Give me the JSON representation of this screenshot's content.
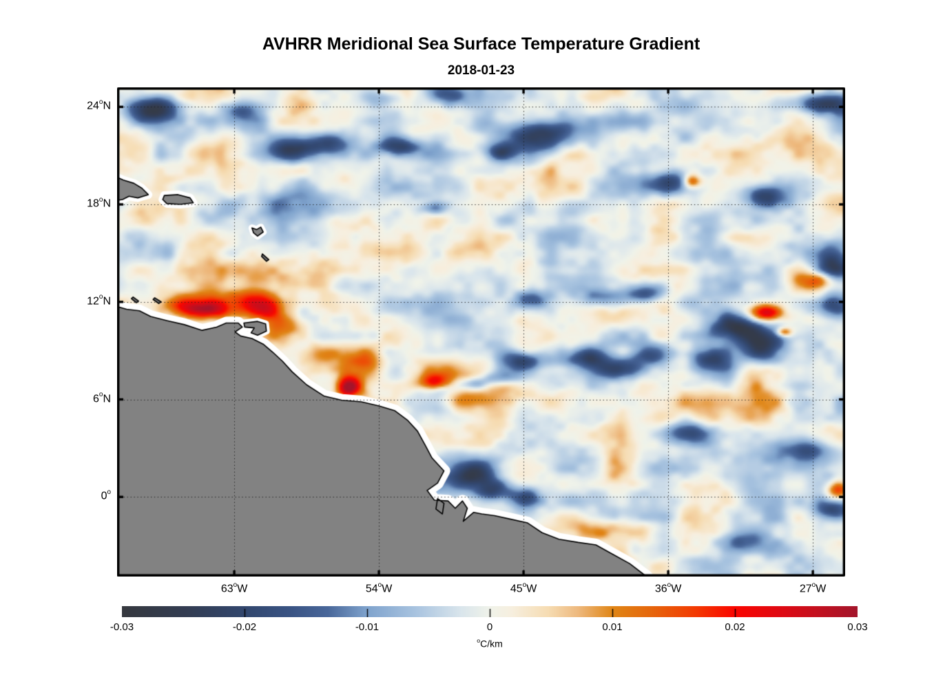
{
  "chart_data": {
    "type": "heatmap",
    "title": "AVHRR Meridional Sea Surface Temperature Gradient",
    "date": "2018-01-23",
    "axes": {
      "lon_range_deg_east": [
        -70.29,
        -24.99
      ],
      "lat_range_deg_north": [
        -4.9,
        25.2
      ],
      "grid_style": "dotted",
      "x_ticks": [
        {
          "label": "63°W",
          "lon": -63
        },
        {
          "label": "54°W",
          "lon": -54
        },
        {
          "label": "45°W",
          "lon": -45
        },
        {
          "label": "36°W",
          "lon": -36
        },
        {
          "label": "27°W",
          "lon": -27
        }
      ],
      "y_ticks": [
        {
          "label": "24°N",
          "lat": 24
        },
        {
          "label": "18°N",
          "lat": 18
        },
        {
          "label": "12°N",
          "lat": 12
        },
        {
          "label": "6°N",
          "lat": 6
        },
        {
          "label": "0°",
          "lat": 0
        }
      ]
    },
    "colorbar": {
      "min": -0.03,
      "max": 0.03,
      "unit": "°C/km",
      "tick_labels": [
        "-0.03",
        "-0.02",
        "-0.01",
        "0",
        "0.01",
        "0.02",
        "0.03"
      ],
      "tick_values": [
        -0.03,
        -0.02,
        -0.01,
        0,
        0.01,
        0.02,
        0.03
      ],
      "inner_tick_values": [
        -0.02,
        -0.01,
        0,
        0.01,
        0.02
      ],
      "colormap_stops": [
        [
          0.0,
          "#36393f"
        ],
        [
          0.09,
          "#333d53"
        ],
        [
          0.167,
          "#32476e"
        ],
        [
          0.23,
          "#3a5484"
        ],
        [
          0.28,
          "#49679a"
        ],
        [
          0.333,
          "#7fa3cd"
        ],
        [
          0.4,
          "#a9c4e0"
        ],
        [
          0.46,
          "#d9e5ec"
        ],
        [
          0.5,
          "#f0f3ea"
        ],
        [
          0.53,
          "#f7efdf"
        ],
        [
          0.58,
          "#f6dcb2"
        ],
        [
          0.62,
          "#eeb97e"
        ],
        [
          0.667,
          "#e08616"
        ],
        [
          0.72,
          "#e6660c"
        ],
        [
          0.78,
          "#f33a02"
        ],
        [
          0.833,
          "#fa0600"
        ],
        [
          0.9,
          "#dd0a14"
        ],
        [
          0.95,
          "#c11120"
        ],
        [
          1.0,
          "#a3152b"
        ]
      ]
    },
    "field": {
      "units": "°C/km",
      "noise": {
        "seed": 1337,
        "octaves": [
          {
            "cell_x": 66,
            "cell_y": 46,
            "amp": 0.0058
          },
          {
            "cell_x": 33,
            "cell_y": 24,
            "amp": 0.004
          },
          {
            "cell_x": 15,
            "cell_y": 12,
            "amp": 0.0016
          }
        ]
      },
      "features": [
        {
          "lon": -62.3,
          "lat": 12.05,
          "sx": 1.7,
          "sy": 0.55,
          "amp": 0.02
        },
        {
          "lon": -64.9,
          "lat": 11.55,
          "sx": 1.1,
          "sy": 0.42,
          "amp": 0.024
        },
        {
          "lon": -61.1,
          "lat": 11.5,
          "sx": 0.8,
          "sy": 0.45,
          "amp": 0.016
        },
        {
          "lon": -66.8,
          "lat": 11.9,
          "sx": 1.2,
          "sy": 0.5,
          "amp": 0.012
        },
        {
          "lon": -59.8,
          "lat": 10.5,
          "sx": 1.0,
          "sy": 0.6,
          "amp": 0.012
        },
        {
          "lon": -55.9,
          "lat": 6.8,
          "sx": 0.55,
          "sy": 0.45,
          "amp": 0.034
        },
        {
          "lon": -54.7,
          "lat": 8.2,
          "sx": 0.8,
          "sy": 0.7,
          "amp": 0.013
        },
        {
          "lon": -56.5,
          "lat": 8.8,
          "sx": 1.2,
          "sy": 0.5,
          "amp": 0.008
        },
        {
          "lon": -50.2,
          "lat": 7.3,
          "sx": 1.3,
          "sy": 0.8,
          "amp": 0.009
        },
        {
          "lon": -50.6,
          "lat": 7.0,
          "sx": 0.5,
          "sy": 0.35,
          "amp": 0.012
        },
        {
          "lon": -29.9,
          "lat": 11.4,
          "sx": 0.7,
          "sy": 0.35,
          "amp": 0.026
        },
        {
          "lon": -28.8,
          "lat": 10.2,
          "sx": 0.35,
          "sy": 0.2,
          "amp": 0.018
        },
        {
          "lon": -34.5,
          "lat": 19.5,
          "sx": 0.4,
          "sy": 0.3,
          "amp": 0.022
        },
        {
          "lon": -25.4,
          "lat": 0.5,
          "sx": 0.5,
          "sy": 0.4,
          "amp": 0.022
        },
        {
          "lon": -26.5,
          "lat": 13.4,
          "sx": 0.9,
          "sy": 0.4,
          "amp": 0.016
        },
        {
          "lon": -39.5,
          "lat": -1.9,
          "sx": 2.0,
          "sy": 0.55,
          "amp": 0.009
        },
        {
          "lon": -58.8,
          "lat": 13.8,
          "sx": 1.8,
          "sy": 0.7,
          "amp": 0.008
        },
        {
          "lon": -46.0,
          "lat": 6.3,
          "sx": 2.5,
          "sy": 0.7,
          "amp": 0.007
        },
        {
          "lon": -30.0,
          "lat": 5.8,
          "sx": 2.0,
          "sy": 0.8,
          "amp": 0.007
        },
        {
          "lon": -38.9,
          "lat": 9.0,
          "sx": 1.1,
          "sy": 0.35,
          "amp": 0.01
        },
        {
          "lon": -59.0,
          "lat": 20.3,
          "sx": 1.4,
          "sy": 0.5,
          "amp": 0.007
        },
        {
          "lon": -68.3,
          "lat": 23.9,
          "sx": 1.2,
          "sy": 0.6,
          "amp": -0.024
        },
        {
          "lon": -62.6,
          "lat": 23.9,
          "sx": 0.9,
          "sy": 0.4,
          "amp": -0.013
        },
        {
          "lon": -59.8,
          "lat": 21.3,
          "sx": 1.1,
          "sy": 0.5,
          "amp": -0.022
        },
        {
          "lon": -57.2,
          "lat": 21.8,
          "sx": 0.9,
          "sy": 0.5,
          "amp": -0.017
        },
        {
          "lon": -52.8,
          "lat": 21.6,
          "sx": 0.9,
          "sy": 0.4,
          "amp": -0.02
        },
        {
          "lon": -43.9,
          "lat": 22.4,
          "sx": 1.9,
          "sy": 0.75,
          "amp": -0.026
        },
        {
          "lon": -46.5,
          "lat": 21.3,
          "sx": 0.7,
          "sy": 0.4,
          "amp": -0.015
        },
        {
          "lon": -35.8,
          "lat": 19.4,
          "sx": 1.2,
          "sy": 0.6,
          "amp": -0.024
        },
        {
          "lon": -30.0,
          "lat": 18.6,
          "sx": 1.0,
          "sy": 0.5,
          "amp": -0.021
        },
        {
          "lon": -26.4,
          "lat": 24.3,
          "sx": 1.3,
          "sy": 0.5,
          "amp": -0.021
        },
        {
          "lon": -58.5,
          "lat": 18.0,
          "sx": 3.2,
          "sy": 0.8,
          "amp": -0.009
        },
        {
          "lon": -50.6,
          "lat": 17.8,
          "sx": 0.6,
          "sy": 0.3,
          "amp": -0.013
        },
        {
          "lon": -25.7,
          "lat": 14.2,
          "sx": 0.8,
          "sy": 0.9,
          "amp": -0.024
        },
        {
          "lon": -25.8,
          "lat": 11.8,
          "sx": 0.8,
          "sy": 0.5,
          "amp": -0.016
        },
        {
          "lon": -31.8,
          "lat": 10.4,
          "sx": 1.2,
          "sy": 0.6,
          "amp": -0.024
        },
        {
          "lon": -30.1,
          "lat": 9.2,
          "sx": 0.9,
          "sy": 0.7,
          "amp": -0.019
        },
        {
          "lon": -33.3,
          "lat": 8.6,
          "sx": 1.0,
          "sy": 0.6,
          "amp": -0.021
        },
        {
          "lon": -41.0,
          "lat": 8.7,
          "sx": 1.0,
          "sy": 0.45,
          "amp": -0.02
        },
        {
          "lon": -39.2,
          "lat": 7.9,
          "sx": 0.9,
          "sy": 0.4,
          "amp": -0.022
        },
        {
          "lon": -37.4,
          "lat": 8.8,
          "sx": 0.9,
          "sy": 0.45,
          "amp": -0.02
        },
        {
          "lon": -45.1,
          "lat": 8.4,
          "sx": 0.95,
          "sy": 0.5,
          "amp": -0.022
        },
        {
          "lon": -50.3,
          "lat": 6.6,
          "sx": 0.9,
          "sy": 0.3,
          "amp": -0.014
        },
        {
          "lon": -48.4,
          "lat": 7.0,
          "sx": 0.9,
          "sy": 0.3,
          "amp": -0.016
        },
        {
          "lon": -46.4,
          "lat": 7.4,
          "sx": 0.8,
          "sy": 0.3,
          "amp": -0.013
        },
        {
          "lon": -48.3,
          "lat": 1.5,
          "sx": 1.1,
          "sy": 0.7,
          "amp": -0.024
        },
        {
          "lon": -46.8,
          "lat": 0.5,
          "sx": 0.8,
          "sy": 0.5,
          "amp": -0.018
        },
        {
          "lon": -44.9,
          "lat": 0.0,
          "sx": 0.6,
          "sy": 0.4,
          "amp": -0.013
        },
        {
          "lon": -34.9,
          "lat": 4.0,
          "sx": 1.0,
          "sy": 0.5,
          "amp": -0.018
        },
        {
          "lon": -27.4,
          "lat": 2.9,
          "sx": 1.2,
          "sy": 0.5,
          "amp": -0.02
        },
        {
          "lon": -25.6,
          "lat": -0.8,
          "sx": 0.9,
          "sy": 0.5,
          "amp": -0.018
        },
        {
          "lon": -31.5,
          "lat": -2.8,
          "sx": 1.4,
          "sy": 0.5,
          "amp": -0.013
        },
        {
          "lon": -37.5,
          "lat": 12.6,
          "sx": 0.9,
          "sy": 0.45,
          "amp": -0.019
        },
        {
          "lon": -40.3,
          "lat": 12.3,
          "sx": 1.0,
          "sy": 0.4,
          "amp": -0.012
        },
        {
          "lon": -44.5,
          "lat": 12.3,
          "sx": 0.7,
          "sy": 0.4,
          "amp": -0.012
        },
        {
          "lon": -63.3,
          "lat": 10.6,
          "sx": 0.28,
          "sy": 0.28,
          "amp": -0.028
        },
        {
          "lon": -53.8,
          "lat": 24.6,
          "sx": 1.0,
          "sy": 0.5,
          "amp": -0.012
        },
        {
          "lon": -49.5,
          "lat": 24.8,
          "sx": 0.8,
          "sy": 0.4,
          "amp": -0.014
        }
      ]
    },
    "land": {
      "fill": "#828282",
      "outline": "#000000",
      "no_data_halo": "#ffffff",
      "polygons": [
        {
          "name": "south-america",
          "halo": 9,
          "fill": "#828282",
          "pts": [
            [
              -70.6,
              11.8
            ],
            [
              -69.7,
              11.55
            ],
            [
              -68.9,
              11.45
            ],
            [
              -68.2,
              11.1
            ],
            [
              -67.2,
              10.85
            ],
            [
              -66.1,
              10.6
            ],
            [
              -65.0,
              10.25
            ],
            [
              -64.1,
              10.45
            ],
            [
              -63.5,
              10.7
            ],
            [
              -62.75,
              10.7
            ],
            [
              -62.5,
              10.45
            ],
            [
              -62.95,
              10.15
            ],
            [
              -62.6,
              9.9
            ],
            [
              -61.9,
              9.75
            ],
            [
              -61.2,
              9.4
            ],
            [
              -60.6,
              8.9
            ],
            [
              -60.0,
              8.35
            ],
            [
              -59.4,
              7.7
            ],
            [
              -58.5,
              6.9
            ],
            [
              -57.4,
              6.2
            ],
            [
              -56.3,
              5.95
            ],
            [
              -55.1,
              5.85
            ],
            [
              -54.0,
              5.6
            ],
            [
              -53.0,
              5.3
            ],
            [
              -52.2,
              4.7
            ],
            [
              -51.6,
              4.05
            ],
            [
              -51.1,
              3.15
            ],
            [
              -50.7,
              2.4
            ],
            [
              -49.95,
              1.6
            ],
            [
              -50.35,
              0.85
            ],
            [
              -51.0,
              0.4
            ],
            [
              -50.55,
              -0.2
            ],
            [
              -49.7,
              -0.25
            ],
            [
              -49.25,
              -0.7
            ],
            [
              -48.8,
              -0.25
            ],
            [
              -48.5,
              -0.7
            ],
            [
              -48.75,
              -1.5
            ],
            [
              -48.1,
              -0.95
            ],
            [
              -47.6,
              -1.05
            ],
            [
              -46.8,
              -1.15
            ],
            [
              -45.9,
              -1.35
            ],
            [
              -44.75,
              -1.6
            ],
            [
              -43.85,
              -2.2
            ],
            [
              -42.8,
              -2.6
            ],
            [
              -41.6,
              -2.8
            ],
            [
              -40.5,
              -2.95
            ],
            [
              -39.5,
              -3.5
            ],
            [
              -38.4,
              -4.1
            ],
            [
              -37.35,
              -4.9
            ],
            [
              -36.9,
              -5.4
            ],
            [
              -70.6,
              -5.4
            ]
          ]
        },
        {
          "name": "hispaniola-east",
          "halo": 6,
          "fill": "#828282",
          "pts": [
            [
              -70.6,
              19.8
            ],
            [
              -69.9,
              19.5
            ],
            [
              -69.25,
              19.3
            ],
            [
              -68.75,
              19.0
            ],
            [
              -68.35,
              18.6
            ],
            [
              -69.0,
              18.4
            ],
            [
              -69.55,
              18.5
            ],
            [
              -69.95,
              18.3
            ],
            [
              -70.6,
              18.2
            ]
          ]
        },
        {
          "name": "puerto-rico",
          "halo": 6,
          "fill": "#828282",
          "pts": [
            [
              -67.35,
              18.55
            ],
            [
              -66.5,
              18.6
            ],
            [
              -65.75,
              18.4
            ],
            [
              -65.55,
              18.1
            ],
            [
              -66.35,
              18.0
            ],
            [
              -67.2,
              18.05
            ],
            [
              -67.45,
              18.3
            ]
          ]
        },
        {
          "name": "guadeloupe",
          "halo": 5,
          "fill": "#828282",
          "pts": [
            [
              -61.9,
              16.55
            ],
            [
              -61.6,
              16.45
            ],
            [
              -61.35,
              16.6
            ],
            [
              -61.2,
              16.3
            ],
            [
              -61.55,
              16.05
            ],
            [
              -61.8,
              16.25
            ]
          ]
        },
        {
          "name": "martinique",
          "halo": 0,
          "fill": "#6e6e6e",
          "pts": [
            [
              -61.25,
              14.95
            ],
            [
              -60.85,
              14.6
            ],
            [
              -61.0,
              14.5
            ],
            [
              -61.3,
              14.8
            ]
          ]
        },
        {
          "name": "trinidad",
          "halo": 5,
          "fill": "#828282",
          "pts": [
            [
              -62.4,
              10.7
            ],
            [
              -61.55,
              10.8
            ],
            [
              -61.05,
              10.65
            ],
            [
              -61.0,
              10.2
            ],
            [
              -61.55,
              9.95
            ],
            [
              -61.95,
              10.1
            ],
            [
              -61.75,
              10.4
            ],
            [
              -62.35,
              10.45
            ]
          ]
        },
        {
          "name": "marajo-island",
          "halo": 4,
          "fill": "#828282",
          "pts": [
            [
              -50.35,
              -0.1
            ],
            [
              -49.95,
              -0.4
            ],
            [
              -50.05,
              -1.05
            ],
            [
              -50.45,
              -0.75
            ]
          ]
        },
        {
          "name": "curacao",
          "halo": 0,
          "fill": "#6e6e6e",
          "pts": [
            [
              -69.3,
              12.3
            ],
            [
              -68.95,
              12.05
            ],
            [
              -69.1,
              11.95
            ],
            [
              -69.4,
              12.2
            ]
          ]
        },
        {
          "name": "bonaire",
          "halo": 0,
          "fill": "#6e6e6e",
          "pts": [
            [
              -67.95,
              12.25
            ],
            [
              -67.55,
              12.0
            ],
            [
              -67.7,
              11.9
            ],
            [
              -68.05,
              12.15
            ]
          ]
        }
      ]
    }
  }
}
